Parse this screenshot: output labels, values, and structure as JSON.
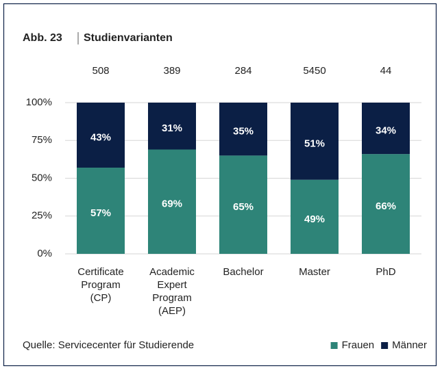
{
  "chart_data": {
    "type": "stacked_bar_100",
    "figure_number": "Abb. 23",
    "title": "Studienvarianten",
    "categories": [
      [
        "Certificate",
        "Program",
        "(CP)"
      ],
      [
        "Academic",
        "Expert",
        "Program",
        "(AEP)"
      ],
      [
        "Bachelor"
      ],
      [
        "Master"
      ],
      [
        "PhD"
      ]
    ],
    "totals": [
      508,
      389,
      284,
      5450,
      44
    ],
    "series": [
      {
        "name": "Frauen",
        "color": "#2e8478",
        "values": [
          57,
          69,
          65,
          49,
          66
        ],
        "value_labels": [
          "57%",
          "69%",
          "65%",
          "49%",
          "66%"
        ]
      },
      {
        "name": "Männer",
        "color": "#0b1f45",
        "values": [
          43,
          31,
          35,
          51,
          34
        ],
        "value_labels": [
          "43%",
          "31%",
          "35%",
          "51%",
          "34%"
        ]
      }
    ],
    "ylim": [
      0,
      100
    ],
    "yticks": [
      {
        "value": 0,
        "label": "0%"
      },
      {
        "value": 25,
        "label": "25%"
      },
      {
        "value": 50,
        "label": "50%"
      },
      {
        "value": 75,
        "label": "75%"
      },
      {
        "value": 100,
        "label": "100%"
      }
    ],
    "grid": true,
    "legend": "bottom-right",
    "source": "Quelle: Servicecenter für Studierende"
  }
}
